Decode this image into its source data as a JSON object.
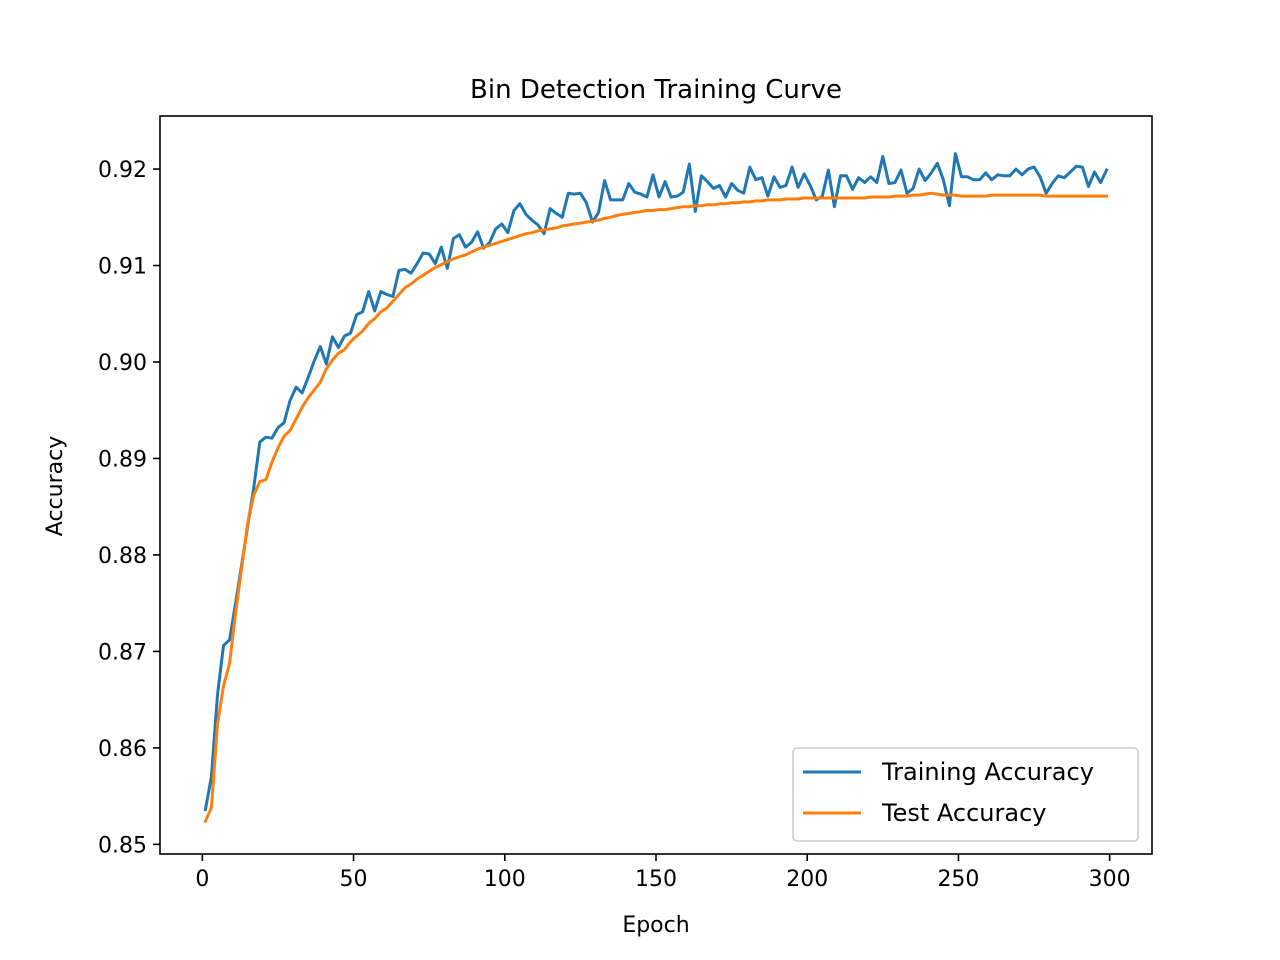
{
  "chart_data": {
    "type": "line",
    "title": "Bin Detection Training Curve",
    "xlabel": "Epoch",
    "ylabel": "Accuracy",
    "xlim": [
      -14,
      314
    ],
    "ylim": [
      0.849,
      0.9255
    ],
    "xticks": [
      0,
      50,
      100,
      150,
      200,
      250,
      300
    ],
    "xtick_labels": [
      "0",
      "50",
      "100",
      "150",
      "200",
      "250",
      "300"
    ],
    "yticks": [
      0.85,
      0.86,
      0.87,
      0.88,
      0.89,
      0.9,
      0.91,
      0.92
    ],
    "ytick_labels": [
      "0.85",
      "0.86",
      "0.87",
      "0.88",
      "0.89",
      "0.90",
      "0.91",
      "0.92"
    ],
    "grid": false,
    "legend_position": "lower-right",
    "series": [
      {
        "name": "Training Accuracy",
        "color": "#1f77b4",
        "x": [
          1,
          3,
          5,
          7,
          9,
          11,
          13,
          15,
          17,
          19,
          21,
          23,
          25,
          27,
          29,
          31,
          33,
          35,
          37,
          39,
          41,
          43,
          45,
          47,
          49,
          51,
          53,
          55,
          57,
          59,
          61,
          63,
          65,
          67,
          69,
          71,
          73,
          75,
          77,
          79,
          81,
          83,
          85,
          87,
          89,
          91,
          93,
          95,
          97,
          99,
          101,
          103,
          105,
          107,
          109,
          111,
          113,
          115,
          117,
          119,
          121,
          123,
          125,
          127,
          129,
          131,
          133,
          135,
          137,
          139,
          141,
          143,
          145,
          147,
          149,
          151,
          153,
          155,
          157,
          159,
          161,
          163,
          165,
          167,
          169,
          171,
          173,
          175,
          177,
          179,
          181,
          183,
          185,
          187,
          189,
          191,
          193,
          195,
          197,
          199,
          201,
          203,
          205,
          207,
          209,
          211,
          213,
          215,
          217,
          219,
          221,
          223,
          225,
          227,
          229,
          231,
          233,
          235,
          237,
          239,
          241,
          243,
          245,
          247,
          249,
          251,
          253,
          255,
          257,
          259,
          261,
          263,
          265,
          267,
          269,
          271,
          273,
          275,
          277,
          279,
          281,
          283,
          285,
          287,
          289,
          291,
          293,
          295,
          297,
          299
        ],
        "y": [
          0.8536,
          0.857,
          0.8655,
          0.8706,
          0.8712,
          0.875,
          0.879,
          0.883,
          0.887,
          0.8917,
          0.8922,
          0.8921,
          0.8932,
          0.8937,
          0.896,
          0.8974,
          0.8968,
          0.8984,
          0.9001,
          0.9016,
          0.8998,
          0.9026,
          0.9015,
          0.9027,
          0.903,
          0.9049,
          0.9052,
          0.9073,
          0.9053,
          0.9073,
          0.907,
          0.9068,
          0.9095,
          0.9096,
          0.9092,
          0.9102,
          0.9113,
          0.9112,
          0.9102,
          0.9119,
          0.9097,
          0.9128,
          0.9132,
          0.9119,
          0.9124,
          0.9135,
          0.9118,
          0.9124,
          0.9138,
          0.9143,
          0.9134,
          0.9157,
          0.9164,
          0.9153,
          0.9147,
          0.9142,
          0.9133,
          0.9159,
          0.9154,
          0.915,
          0.9175,
          0.9174,
          0.9175,
          0.9165,
          0.9145,
          0.9155,
          0.9188,
          0.9168,
          0.9168,
          0.9168,
          0.9185,
          0.9176,
          0.9174,
          0.9171,
          0.9194,
          0.9171,
          0.9187,
          0.9171,
          0.9172,
          0.9176,
          0.9205,
          0.9156,
          0.9193,
          0.9187,
          0.918,
          0.9183,
          0.9171,
          0.9185,
          0.9178,
          0.9175,
          0.9202,
          0.9189,
          0.9191,
          0.9172,
          0.9192,
          0.9181,
          0.9183,
          0.9202,
          0.9181,
          0.9195,
          0.9183,
          0.9168,
          0.9172,
          0.9199,
          0.9161,
          0.9193,
          0.9193,
          0.9179,
          0.9191,
          0.9186,
          0.9192,
          0.9186,
          0.9213,
          0.9185,
          0.9186,
          0.9199,
          0.9175,
          0.918,
          0.92,
          0.9188,
          0.9196,
          0.9206,
          0.9189,
          0.9162,
          0.9216,
          0.9192,
          0.9192,
          0.9189,
          0.9189,
          0.9196,
          0.9189,
          0.9194,
          0.9193,
          0.9193,
          0.92,
          0.9194,
          0.92,
          0.9202,
          0.9192,
          0.9175,
          0.9185,
          0.9193,
          0.9191,
          0.9197,
          0.9203,
          0.9202,
          0.9182,
          0.9197,
          0.9186,
          0.9199
        ]
      },
      {
        "name": "Test Accuracy",
        "color": "#ff7f0e",
        "x": [
          1,
          3,
          5,
          7,
          9,
          11,
          13,
          15,
          17,
          19,
          21,
          23,
          25,
          27,
          29,
          31,
          33,
          35,
          37,
          39,
          41,
          43,
          45,
          47,
          49,
          51,
          53,
          55,
          57,
          59,
          61,
          63,
          65,
          67,
          69,
          71,
          73,
          75,
          77,
          79,
          81,
          83,
          85,
          87,
          89,
          91,
          93,
          95,
          97,
          99,
          101,
          103,
          105,
          107,
          109,
          111,
          113,
          115,
          117,
          119,
          121,
          123,
          125,
          127,
          129,
          131,
          133,
          135,
          137,
          139,
          141,
          143,
          145,
          147,
          149,
          151,
          153,
          155,
          157,
          159,
          161,
          163,
          165,
          167,
          169,
          171,
          173,
          175,
          177,
          179,
          181,
          183,
          185,
          187,
          189,
          191,
          193,
          195,
          197,
          199,
          201,
          203,
          205,
          207,
          209,
          211,
          213,
          215,
          217,
          219,
          221,
          223,
          225,
          227,
          229,
          231,
          233,
          235,
          237,
          239,
          241,
          243,
          245,
          247,
          249,
          251,
          253,
          255,
          257,
          259,
          261,
          263,
          265,
          267,
          269,
          271,
          273,
          275,
          277,
          279,
          281,
          283,
          285,
          287,
          289,
          291,
          293,
          295,
          297,
          299
        ],
        "y": [
          0.8524,
          0.8538,
          0.8625,
          0.8664,
          0.8688,
          0.874,
          0.8787,
          0.8833,
          0.8862,
          0.8876,
          0.8878,
          0.8896,
          0.8911,
          0.8923,
          0.8929,
          0.8941,
          0.8953,
          0.8963,
          0.8971,
          0.8979,
          0.8993,
          0.9002,
          0.9009,
          0.9013,
          0.9021,
          0.9027,
          0.9032,
          0.904,
          0.9045,
          0.9052,
          0.9056,
          0.9063,
          0.907,
          0.9077,
          0.9081,
          0.9086,
          0.909,
          0.9094,
          0.9098,
          0.9101,
          0.9104,
          0.9107,
          0.9109,
          0.9111,
          0.9114,
          0.9117,
          0.9119,
          0.9121,
          0.9123,
          0.9125,
          0.9127,
          0.9129,
          0.9131,
          0.9133,
          0.9134,
          0.9136,
          0.9137,
          0.9138,
          0.9139,
          0.9141,
          0.9142,
          0.9143,
          0.9144,
          0.9145,
          0.9146,
          0.9147,
          0.9149,
          0.915,
          0.9152,
          0.9153,
          0.9154,
          0.9155,
          0.9156,
          0.9157,
          0.9157,
          0.9158,
          0.9158,
          0.9159,
          0.916,
          0.9161,
          0.9161,
          0.9162,
          0.9162,
          0.9163,
          0.9163,
          0.9164,
          0.9164,
          0.9165,
          0.9165,
          0.9166,
          0.9166,
          0.9167,
          0.9167,
          0.9168,
          0.9168,
          0.9168,
          0.9169,
          0.9169,
          0.9169,
          0.917,
          0.917,
          0.917,
          0.917,
          0.917,
          0.917,
          0.917,
          0.917,
          0.917,
          0.917,
          0.917,
          0.9171,
          0.9171,
          0.9171,
          0.9171,
          0.9172,
          0.9172,
          0.9172,
          0.9173,
          0.9173,
          0.9174,
          0.9175,
          0.9174,
          0.9173,
          0.9173,
          0.9173,
          0.9172,
          0.9172,
          0.9172,
          0.9172,
          0.9172,
          0.9173,
          0.9173,
          0.9173,
          0.9173,
          0.9173,
          0.9173,
          0.9173,
          0.9173,
          0.9173,
          0.9172,
          0.9172,
          0.9172,
          0.9172,
          0.9172,
          0.9172,
          0.9172,
          0.9172,
          0.9172,
          0.9172,
          0.9172
        ]
      }
    ]
  }
}
